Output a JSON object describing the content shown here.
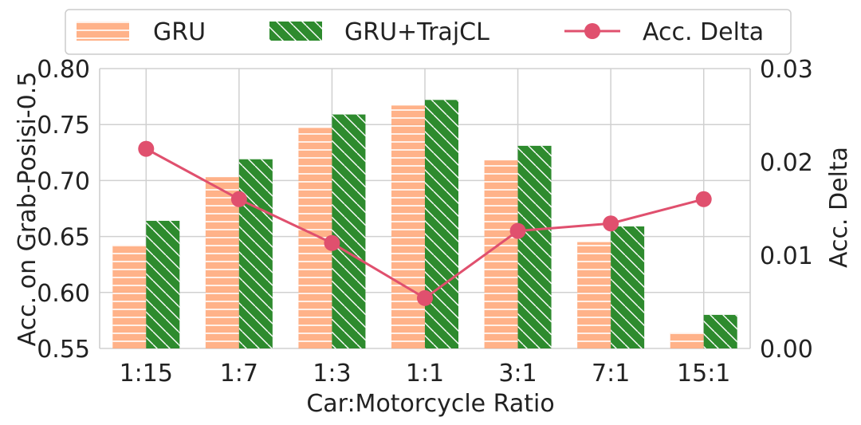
{
  "chart_data": {
    "type": "bar",
    "categories": [
      "1:15",
      "1:7",
      "1:3",
      "1:1",
      "3:1",
      "7:1",
      "15:1"
    ],
    "series": [
      {
        "name": "GRU",
        "values": [
          0.642,
          0.703,
          0.747,
          0.767,
          0.718,
          0.645,
          0.564
        ],
        "color": "#FFA574",
        "hatch": "horizontal"
      },
      {
        "name": "GRU+TrajCL",
        "values": [
          0.664,
          0.719,
          0.759,
          0.772,
          0.731,
          0.659,
          0.58
        ],
        "color": "#2E8B2E",
        "hatch": "diagonal"
      }
    ],
    "line_series": {
      "name": "Acc. Delta",
      "values": [
        0.0214,
        0.016,
        0.0113,
        0.0054,
        0.0126,
        0.0134,
        0.016
      ],
      "color": "#E0506E",
      "axis": "right"
    },
    "xlabel": "Car:Motorcycle Ratio",
    "ylabel": "Acc. on Grab-Posisi-0.5",
    "ylabel_right": "Acc. Delta",
    "ylim": [
      0.55,
      0.8
    ],
    "ylim_right": [
      0,
      0.03
    ],
    "yticks": [
      "0.55",
      "0.60",
      "0.65",
      "0.70",
      "0.75",
      "0.80"
    ],
    "yticks_right": [
      "0.00",
      "0.01",
      "0.02",
      "0.03"
    ],
    "grid": true,
    "legend": "top"
  }
}
